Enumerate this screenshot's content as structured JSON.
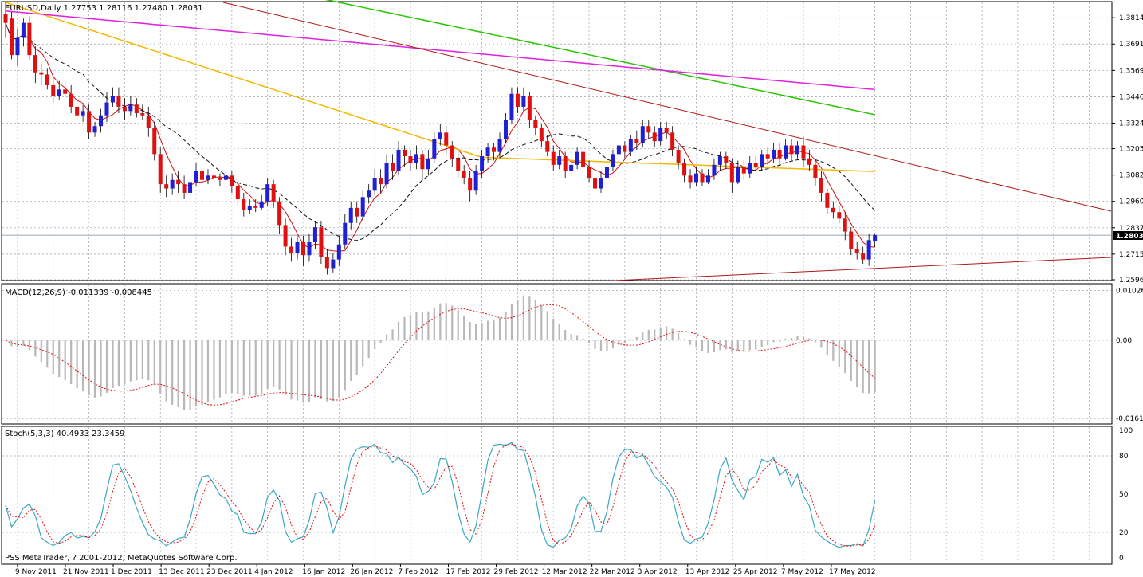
{
  "colors": {
    "background": "#ffffff",
    "grid": "#9aa6b0",
    "frame": "#000000",
    "bull_candle": "#1f1fd6",
    "bear_candle": "#e01010",
    "sma_fast": "#d01010",
    "sma_slow": "#101010",
    "sma_100": "#f5b800",
    "sma_200": "#27c400",
    "sma_300": "#e020e0",
    "trendline": "#b01818",
    "price_badge": "#000000",
    "macd_hist": "#b8b8b8",
    "macd_signal": "#e01010",
    "stoch_main": "#3aa8c0",
    "stoch_signal": "#e01010"
  },
  "chart_data": [
    {
      "type": "candlestick",
      "header": "EURUSD,Daily  1.27753 1.28116 1.27480 1.28031",
      "current_price": "1.28031",
      "ylim": [
        1.2596,
        1.3885
      ],
      "y_ticks": [
        "1.38140",
        "1.36915",
        "1.35690",
        "1.34465",
        "1.33240",
        "1.32050",
        "1.30825",
        "1.29600",
        "1.28375",
        "1.27150",
        "1.25960"
      ],
      "x_ticks": [
        "9 Nov 2011",
        "21 Nov 2011",
        "1 Dec 2011",
        "13 Dec 2011",
        "23 Dec 2011",
        "4 Jan 2012",
        "16 Jan 2012",
        "26 Jan 2012",
        "7 Feb 2012",
        "17 Feb 2012",
        "29 Feb 2012",
        "12 Mar 2012",
        "22 Mar 2012",
        "3 Apr 2012",
        "13 Apr 2012",
        "25 Apr 2012",
        "7 May 2012",
        "17 May 2012"
      ],
      "grid": true,
      "candles": [
        [
          1.383,
          1.379,
          1.389,
          1.372
        ],
        [
          1.381,
          1.364,
          1.384,
          1.362
        ],
        [
          1.364,
          1.372,
          1.376,
          1.359
        ],
        [
          1.372,
          1.379,
          1.381,
          1.368
        ],
        [
          1.379,
          1.364,
          1.382,
          1.362
        ],
        [
          1.364,
          1.356,
          1.368,
          1.351
        ],
        [
          1.356,
          1.355,
          1.36,
          1.35
        ],
        [
          1.355,
          1.35,
          1.358,
          1.348
        ],
        [
          1.35,
          1.345,
          1.354,
          1.342
        ],
        [
          1.345,
          1.348,
          1.352,
          1.343
        ],
        [
          1.348,
          1.346,
          1.352,
          1.344
        ],
        [
          1.346,
          1.34,
          1.35,
          1.337
        ],
        [
          1.34,
          1.336,
          1.344,
          1.334
        ],
        [
          1.336,
          1.338,
          1.341,
          1.333
        ],
        [
          1.338,
          1.328,
          1.341,
          1.325
        ],
        [
          1.328,
          1.331,
          1.333,
          1.326
        ],
        [
          1.331,
          1.336,
          1.339,
          1.328
        ],
        [
          1.336,
          1.342,
          1.347,
          1.333
        ],
        [
          1.342,
          1.345,
          1.349,
          1.34
        ],
        [
          1.345,
          1.34,
          1.349,
          1.337
        ],
        [
          1.34,
          1.338,
          1.344,
          1.334
        ],
        [
          1.338,
          1.341,
          1.345,
          1.336
        ],
        [
          1.341,
          1.337,
          1.344,
          1.335
        ],
        [
          1.337,
          1.336,
          1.341,
          1.334
        ],
        [
          1.336,
          1.33,
          1.34,
          1.326
        ],
        [
          1.33,
          1.318,
          1.333,
          1.315
        ],
        [
          1.318,
          1.304,
          1.321,
          1.3
        ],
        [
          1.304,
          1.302,
          1.308,
          1.298
        ],
        [
          1.302,
          1.306,
          1.309,
          1.299
        ],
        [
          1.306,
          1.304,
          1.31,
          1.3
        ],
        [
          1.304,
          1.3,
          1.308,
          1.297
        ],
        [
          1.3,
          1.305,
          1.309,
          1.298
        ],
        [
          1.305,
          1.31,
          1.314,
          1.303
        ],
        [
          1.31,
          1.306,
          1.312,
          1.303
        ],
        [
          1.306,
          1.308,
          1.311,
          1.304
        ],
        [
          1.308,
          1.307,
          1.31,
          1.305
        ],
        [
          1.307,
          1.306,
          1.309,
          1.303
        ],
        [
          1.306,
          1.308,
          1.31,
          1.304
        ],
        [
          1.308,
          1.303,
          1.31,
          1.3
        ],
        [
          1.303,
          1.297,
          1.306,
          1.294
        ],
        [
          1.297,
          1.292,
          1.3,
          1.289
        ],
        [
          1.292,
          1.294,
          1.297,
          1.29
        ],
        [
          1.294,
          1.293,
          1.297,
          1.291
        ],
        [
          1.293,
          1.296,
          1.299,
          1.292
        ],
        [
          1.296,
          1.304,
          1.307,
          1.294
        ],
        [
          1.304,
          1.296,
          1.306,
          1.293
        ],
        [
          1.296,
          1.285,
          1.298,
          1.281
        ],
        [
          1.285,
          1.275,
          1.288,
          1.271
        ],
        [
          1.275,
          1.272,
          1.279,
          1.268
        ],
        [
          1.272,
          1.277,
          1.28,
          1.269
        ],
        [
          1.277,
          1.271,
          1.28,
          1.266
        ],
        [
          1.271,
          1.277,
          1.281,
          1.268
        ],
        [
          1.277,
          1.284,
          1.287,
          1.274
        ],
        [
          1.284,
          1.27,
          1.287,
          1.267
        ],
        [
          1.27,
          1.265,
          1.274,
          1.262
        ],
        [
          1.265,
          1.269,
          1.272,
          1.263
        ],
        [
          1.269,
          1.276,
          1.28,
          1.266
        ],
        [
          1.276,
          1.286,
          1.29,
          1.274
        ],
        [
          1.286,
          1.293,
          1.296,
          1.283
        ],
        [
          1.293,
          1.289,
          1.296,
          1.286
        ],
        [
          1.289,
          1.298,
          1.301,
          1.287
        ],
        [
          1.298,
          1.301,
          1.304,
          1.295
        ],
        [
          1.301,
          1.307,
          1.311,
          1.299
        ],
        [
          1.307,
          1.304,
          1.311,
          1.3
        ],
        [
          1.304,
          1.314,
          1.318,
          1.302
        ],
        [
          1.314,
          1.31,
          1.318,
          1.306
        ],
        [
          1.31,
          1.32,
          1.324,
          1.308
        ],
        [
          1.32,
          1.317,
          1.322,
          1.312
        ],
        [
          1.317,
          1.314,
          1.32,
          1.31
        ],
        [
          1.314,
          1.318,
          1.322,
          1.311
        ],
        [
          1.318,
          1.311,
          1.32,
          1.306
        ],
        [
          1.311,
          1.316,
          1.32,
          1.308
        ],
        [
          1.316,
          1.325,
          1.328,
          1.314
        ],
        [
          1.325,
          1.328,
          1.332,
          1.322
        ],
        [
          1.328,
          1.322,
          1.331,
          1.318
        ],
        [
          1.322,
          1.316,
          1.324,
          1.312
        ],
        [
          1.316,
          1.31,
          1.319,
          1.307
        ],
        [
          1.31,
          1.307,
          1.313,
          1.304
        ],
        [
          1.307,
          1.301,
          1.31,
          1.296
        ],
        [
          1.301,
          1.31,
          1.313,
          1.299
        ],
        [
          1.31,
          1.317,
          1.32,
          1.307
        ],
        [
          1.317,
          1.321,
          1.323,
          1.314
        ],
        [
          1.321,
          1.319,
          1.323,
          1.315
        ],
        [
          1.319,
          1.325,
          1.328,
          1.316
        ],
        [
          1.325,
          1.334,
          1.337,
          1.323
        ],
        [
          1.334,
          1.346,
          1.349,
          1.332
        ],
        [
          1.346,
          1.34,
          1.349,
          1.337
        ],
        [
          1.34,
          1.345,
          1.349,
          1.338
        ],
        [
          1.345,
          1.334,
          1.347,
          1.33
        ],
        [
          1.334,
          1.33,
          1.336,
          1.327
        ],
        [
          1.33,
          1.324,
          1.332,
          1.321
        ],
        [
          1.324,
          1.319,
          1.327,
          1.317
        ],
        [
          1.319,
          1.313,
          1.322,
          1.31
        ],
        [
          1.313,
          1.317,
          1.32,
          1.311
        ],
        [
          1.317,
          1.31,
          1.319,
          1.307
        ],
        [
          1.31,
          1.313,
          1.316,
          1.308
        ],
        [
          1.313,
          1.319,
          1.321,
          1.311
        ],
        [
          1.319,
          1.312,
          1.321,
          1.309
        ],
        [
          1.312,
          1.307,
          1.315,
          1.305
        ],
        [
          1.307,
          1.302,
          1.31,
          1.299
        ],
        [
          1.302,
          1.307,
          1.31,
          1.3
        ],
        [
          1.307,
          1.312,
          1.315,
          1.306
        ],
        [
          1.312,
          1.318,
          1.32,
          1.31
        ],
        [
          1.318,
          1.322,
          1.325,
          1.316
        ],
        [
          1.322,
          1.319,
          1.324,
          1.316
        ],
        [
          1.319,
          1.325,
          1.327,
          1.317
        ],
        [
          1.325,
          1.323,
          1.329,
          1.32
        ],
        [
          1.323,
          1.331,
          1.334,
          1.321
        ],
        [
          1.331,
          1.328,
          1.334,
          1.325
        ],
        [
          1.328,
          1.324,
          1.331,
          1.321
        ],
        [
          1.324,
          1.33,
          1.333,
          1.322
        ],
        [
          1.33,
          1.328,
          1.333,
          1.325
        ],
        [
          1.328,
          1.32,
          1.331,
          1.317
        ],
        [
          1.32,
          1.314,
          1.322,
          1.311
        ],
        [
          1.314,
          1.308,
          1.316,
          1.305
        ],
        [
          1.308,
          1.305,
          1.311,
          1.302
        ],
        [
          1.305,
          1.309,
          1.312,
          1.303
        ],
        [
          1.309,
          1.305,
          1.311,
          1.303
        ],
        [
          1.305,
          1.308,
          1.311,
          1.304
        ],
        [
          1.308,
          1.313,
          1.316,
          1.306
        ],
        [
          1.313,
          1.317,
          1.319,
          1.31
        ],
        [
          1.317,
          1.314,
          1.319,
          1.311
        ],
        [
          1.314,
          1.305,
          1.316,
          1.3
        ],
        [
          1.305,
          1.312,
          1.315,
          1.304
        ],
        [
          1.312,
          1.309,
          1.315,
          1.306
        ],
        [
          1.309,
          1.314,
          1.317,
          1.307
        ],
        [
          1.314,
          1.312,
          1.317,
          1.31
        ],
        [
          1.312,
          1.318,
          1.32,
          1.31
        ],
        [
          1.318,
          1.316,
          1.321,
          1.313
        ],
        [
          1.316,
          1.32,
          1.323,
          1.314
        ],
        [
          1.32,
          1.316,
          1.323,
          1.313
        ],
        [
          1.316,
          1.322,
          1.325,
          1.315
        ],
        [
          1.322,
          1.318,
          1.325,
          1.315
        ],
        [
          1.318,
          1.322,
          1.324,
          1.316
        ],
        [
          1.322,
          1.316,
          1.326,
          1.312
        ],
        [
          1.316,
          1.313,
          1.32,
          1.31
        ],
        [
          1.313,
          1.307,
          1.315,
          1.303
        ],
        [
          1.307,
          1.3,
          1.31,
          1.296
        ],
        [
          1.3,
          1.293,
          1.302,
          1.29
        ],
        [
          1.293,
          1.291,
          1.296,
          1.288
        ],
        [
          1.291,
          1.288,
          1.294,
          1.286
        ],
        [
          1.288,
          1.282,
          1.291,
          1.278
        ],
        [
          1.282,
          1.274,
          1.284,
          1.271
        ],
        [
          1.274,
          1.272,
          1.277,
          1.269
        ],
        [
          1.272,
          1.269,
          1.275,
          1.267
        ],
        [
          1.269,
          1.278,
          1.281,
          1.266
        ],
        [
          1.2775,
          1.2803,
          1.2812,
          1.2748
        ]
      ],
      "sma_fast_label": "",
      "moving_averages_note": ""
    },
    {
      "type": "histogram",
      "header": "MACD(12,26,9) -0.011339 -0.008445",
      "ylim": [
        -0.0171,
        0.0115
      ],
      "y_ticks": [
        "0.010266",
        "0.00",
        "-0.016137"
      ],
      "grid": true
    },
    {
      "type": "line",
      "header": "Stoch(5,3,3) 40.4933 23.3459",
      "ylim": [
        0,
        100
      ],
      "y_ticks": [
        "100",
        "80",
        "50",
        "20",
        "0"
      ],
      "grid": true
    }
  ],
  "footer": {
    "copyright": "PSS MetaTrader, ? 2001-2012, MetaQuotes Software Corp."
  }
}
